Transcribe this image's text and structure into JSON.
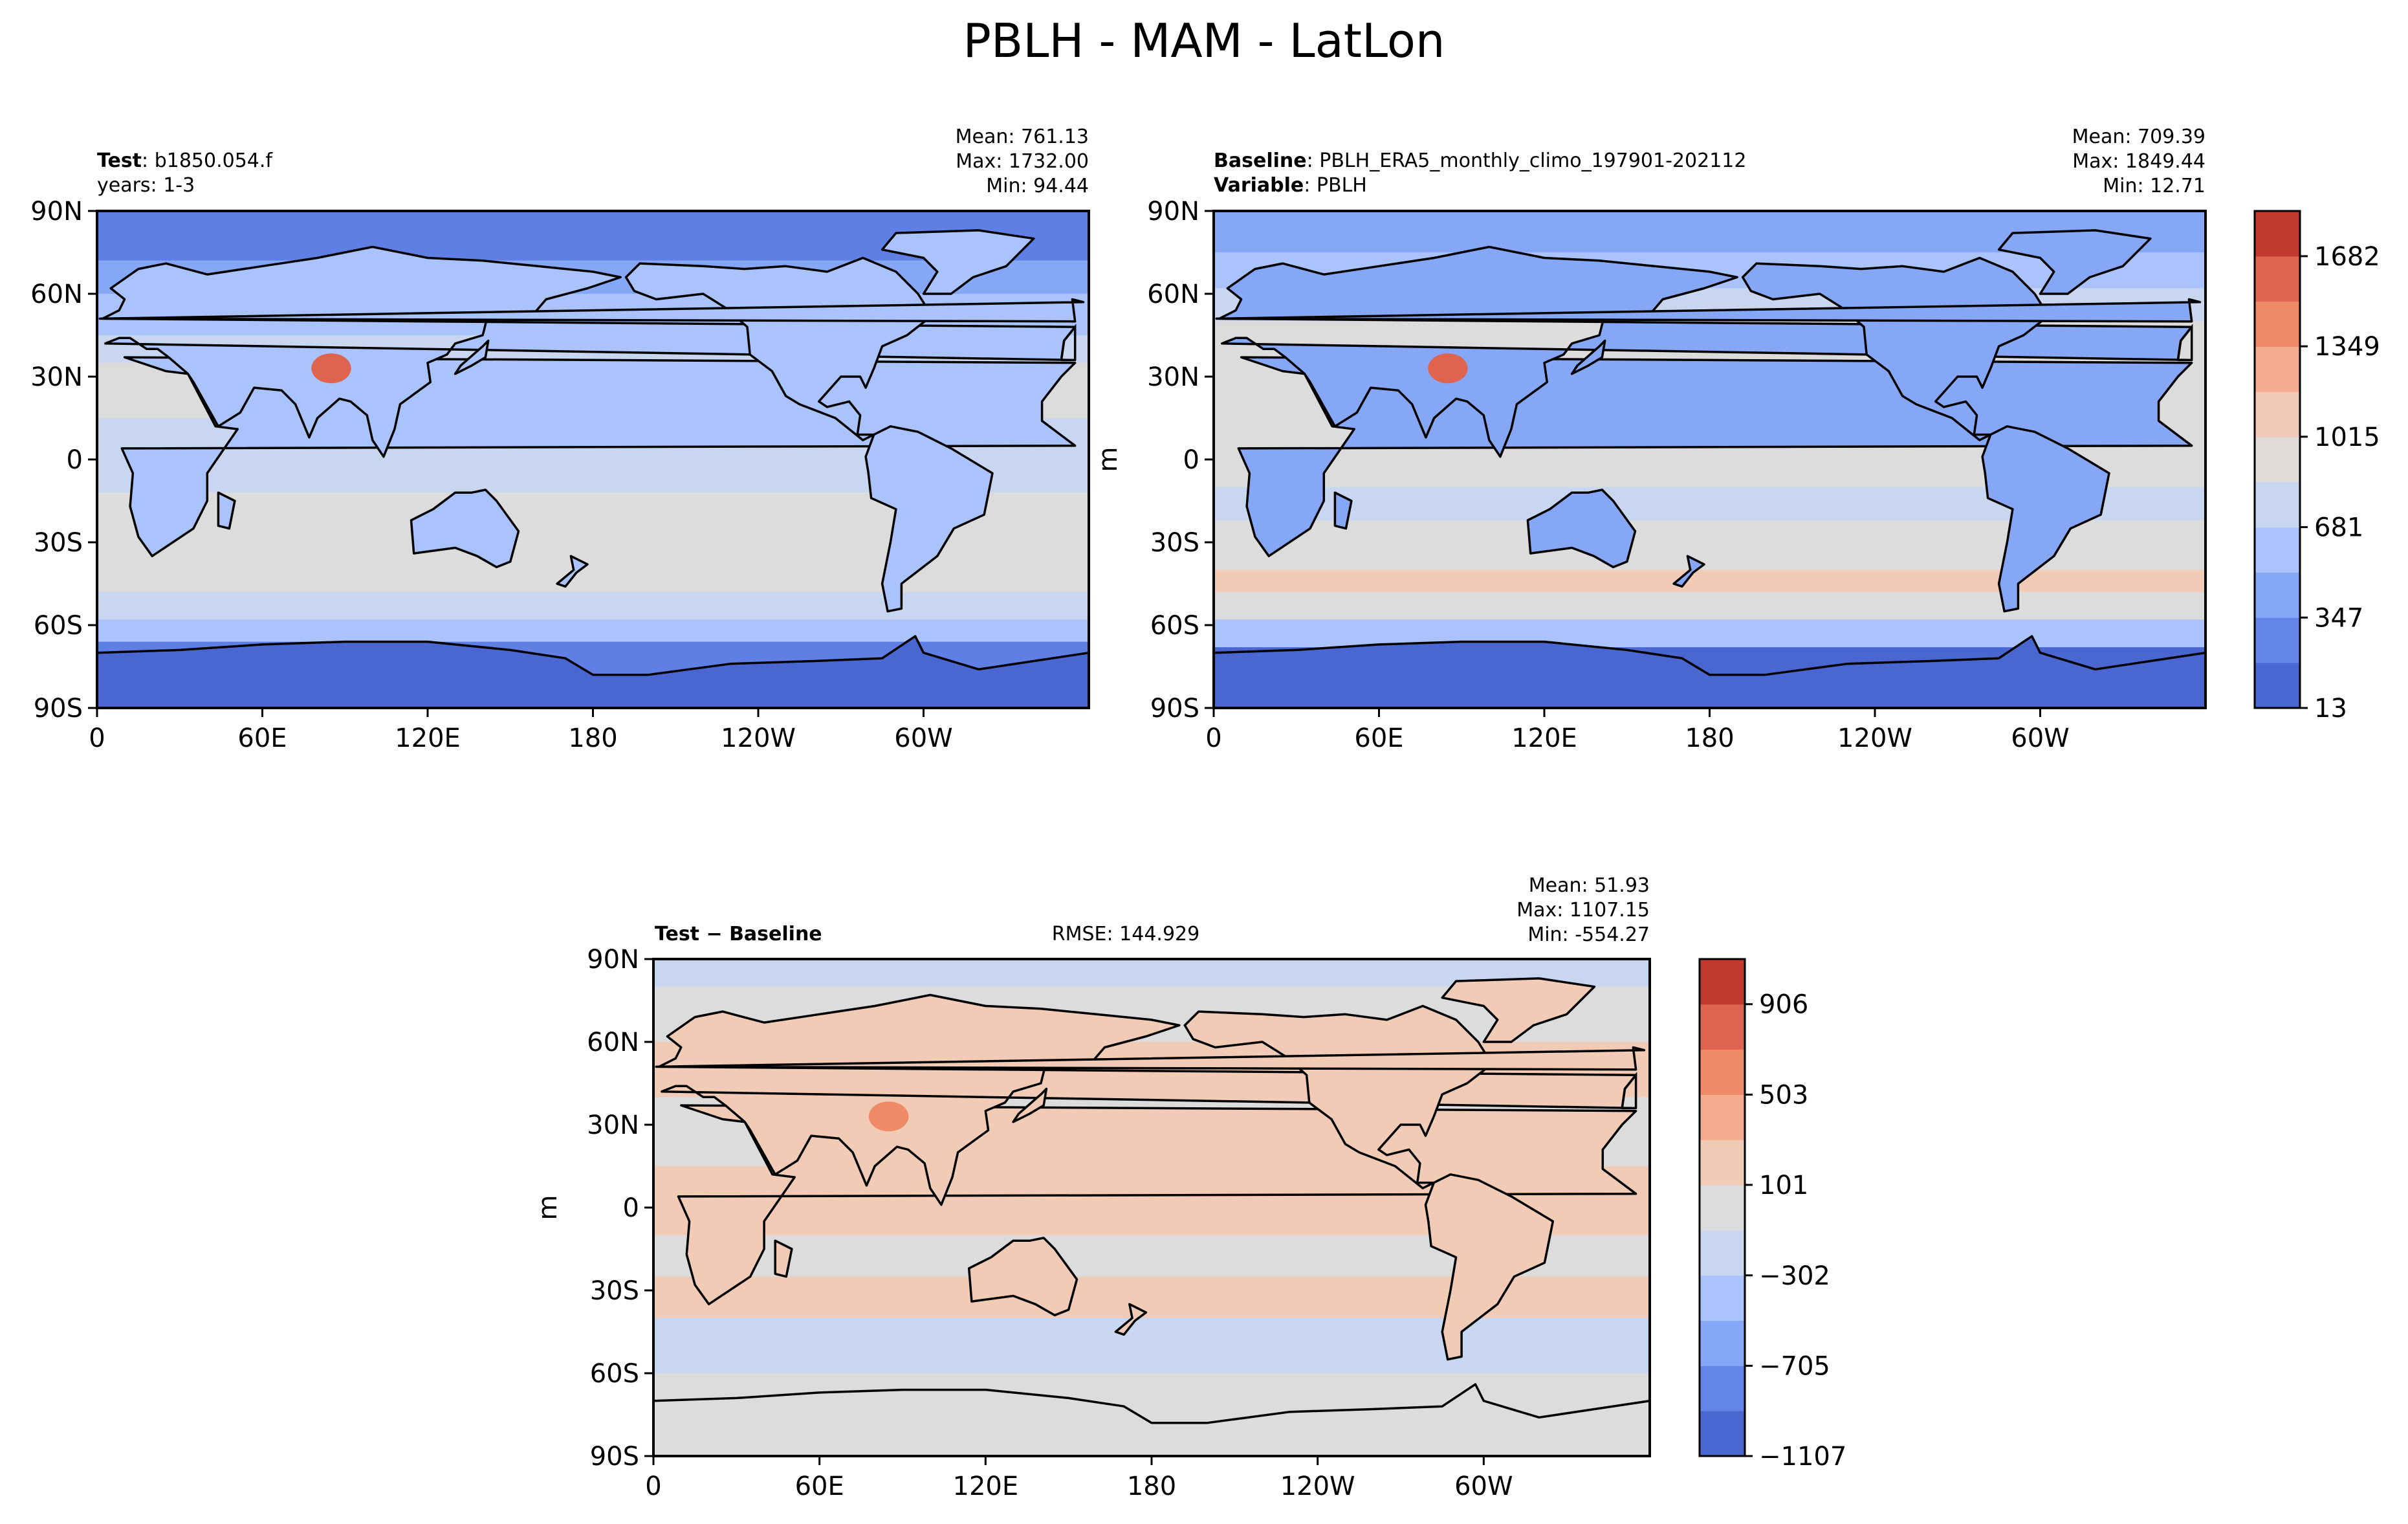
{
  "figure_title": "PBLH - MAM - LatLon",
  "colors": {
    "ocean_neutral": "#dcdcdc",
    "land_line": "#000000"
  },
  "chart_data": [
    {
      "type": "heatmap",
      "panel": "test",
      "header": {
        "label": "Test",
        "case": "b1850.054.f",
        "line2": "years: 1-3"
      },
      "stats": {
        "mean": "Mean: 761.13",
        "max": "Max: 1732.00",
        "min": "Min: 94.44"
      },
      "xlabel": "",
      "ylabel": "",
      "x_ticks": [
        "0",
        "60E",
        "120E",
        "180",
        "120W",
        "60W"
      ],
      "y_ticks": [
        "90N",
        "60N",
        "30N",
        "0",
        "30S",
        "60S",
        "90S"
      ],
      "xlim": [
        0,
        360
      ],
      "ylim": [
        -90,
        90
      ]
    },
    {
      "type": "heatmap",
      "panel": "baseline",
      "header": {
        "label": "Baseline",
        "case": "PBLH_ERA5_monthly_climo_197901-202112",
        "label2": "Variable",
        "value2": "PBLH"
      },
      "stats": {
        "mean": "Mean: 709.39",
        "max": "Max: 1849.44",
        "min": "Min: 12.71"
      },
      "xlabel": "",
      "ylabel": "m",
      "x_ticks": [
        "0",
        "60E",
        "120E",
        "180",
        "120W",
        "60W"
      ],
      "y_ticks": [
        "90N",
        "60N",
        "30N",
        "0",
        "30S",
        "60S",
        "90S"
      ],
      "xlim": [
        0,
        360
      ],
      "ylim": [
        -90,
        90
      ],
      "colorbar": {
        "range": [
          13,
          1849
        ],
        "labels": [
          "1682",
          "1349",
          "1015",
          "681",
          "347",
          "13"
        ],
        "label_values": [
          1682,
          1349,
          1015,
          681,
          347,
          13
        ],
        "colors": [
          "#4a66d0",
          "#6485e8",
          "#86a6f6",
          "#aac3fc",
          "#c9d6f0",
          "#e0dcda",
          "#f2cbb7",
          "#f5ac8e",
          "#ef8a66",
          "#de6450",
          "#c03a30"
        ]
      }
    },
    {
      "type": "heatmap",
      "panel": "difference",
      "header": {
        "label": "Test",
        "label_b": "Baseline"
      },
      "rmse": "RMSE: 144.929",
      "stats": {
        "mean": "Mean: 51.93",
        "max": "Max: 1107.15",
        "min": "Min: -554.27"
      },
      "xlabel": "",
      "ylabel": "m",
      "x_ticks": [
        "0",
        "60E",
        "120E",
        "180",
        "120W",
        "60W"
      ],
      "y_ticks": [
        "90N",
        "60N",
        "30N",
        "0",
        "30S",
        "60S",
        "90S"
      ],
      "xlim": [
        0,
        360
      ],
      "ylim": [
        -90,
        90
      ],
      "colorbar": {
        "range": [
          -1107,
          1107
        ],
        "labels": [
          "906",
          "503",
          "101",
          "−302",
          "−705",
          "−1107"
        ],
        "label_values": [
          906,
          503,
          101,
          -302,
          -705,
          -1107
        ],
        "colors": [
          "#4a66d0",
          "#6485e8",
          "#86a6f6",
          "#aac3fc",
          "#c9d6f0",
          "#dcdcdc",
          "#f2cbb7",
          "#f5ac8e",
          "#ef8a66",
          "#de6450",
          "#c03a30"
        ]
      }
    }
  ]
}
